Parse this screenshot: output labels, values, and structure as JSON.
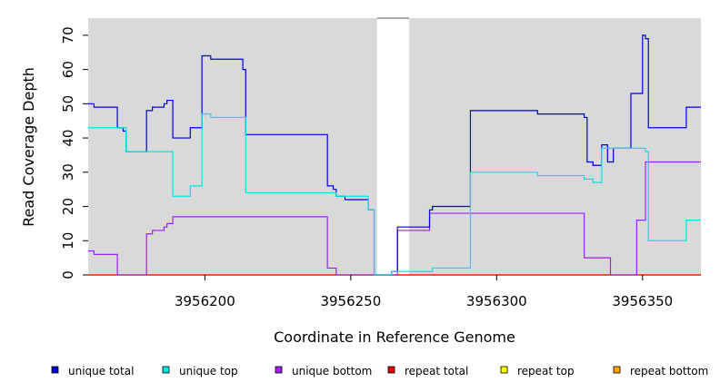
{
  "chart_data": {
    "type": "line",
    "xlabel": "Coordinate in Reference Genome",
    "ylabel": "Read Coverage Depth",
    "xlim": [
      3956160,
      3956370
    ],
    "ylim": [
      0,
      75
    ],
    "x_ticks": [
      3956200,
      3956250,
      3956300,
      3956350
    ],
    "y_ticks": [
      0,
      10,
      20,
      30,
      40,
      50,
      60,
      70
    ],
    "gap": [
      3956259,
      3956270
    ],
    "background": "#d9d9d9",
    "legend_position": "bottom",
    "series": [
      {
        "name": "unique total",
        "color": "#0000dd",
        "x": [
          3956160,
          3956162,
          3956170,
          3956172,
          3956173,
          3956180,
          3956182,
          3956186,
          3956187,
          3956189,
          3956195,
          3956199,
          3956202,
          3956204,
          3956213,
          3956214,
          3956242,
          3956244,
          3956245,
          3956248,
          3956256,
          3956258,
          3956264,
          3956266,
          3956270,
          3956277,
          3956278,
          3956291,
          3956314,
          3956330,
          3956331,
          3956333,
          3956334,
          3956336,
          3956338,
          3956340,
          3956346,
          3956350,
          3956351,
          3956352,
          3956365,
          3956370
        ],
        "y": [
          50,
          49,
          43,
          42,
          36,
          48,
          49,
          50,
          51,
          40,
          43,
          64,
          63,
          63,
          60,
          41,
          26,
          25,
          23,
          22,
          19,
          0,
          1,
          14,
          14,
          19,
          20,
          48,
          47,
          46,
          33,
          32,
          32,
          38,
          33,
          37,
          53,
          70,
          69,
          43,
          49,
          49
        ]
      },
      {
        "name": "unique top",
        "color": "#00e5e5",
        "x": [
          3956160,
          3956172,
          3956173,
          3956180,
          3956189,
          3956195,
          3956199,
          3956202,
          3956213,
          3956214,
          3956242,
          3956245,
          3956256,
          3956258,
          3956264,
          3956266,
          3956274,
          3956278,
          3956291,
          3956314,
          3956330,
          3956333,
          3956336,
          3956346,
          3956351,
          3956352,
          3956365,
          3956370
        ],
        "y": [
          43,
          43,
          36,
          36,
          23,
          26,
          47,
          46,
          46,
          24,
          24,
          23,
          19,
          0,
          1,
          1,
          1,
          2,
          30,
          29,
          28,
          27,
          37,
          37,
          36,
          10,
          16,
          16
        ],
        "draw_order": 2
      },
      {
        "name": "unique bottom",
        "color": "#a020f0",
        "x": [
          3956160,
          3956162,
          3956170,
          3956180,
          3956182,
          3956186,
          3956187,
          3956189,
          3956202,
          3956242,
          3956245,
          3956256,
          3956266,
          3956277,
          3956278,
          3956291,
          3956330,
          3956339,
          3956346,
          3956348,
          3956351,
          3956370
        ],
        "y": [
          7,
          6,
          0,
          12,
          13,
          14,
          15,
          17,
          17,
          2,
          0,
          0,
          13,
          18,
          18,
          18,
          5,
          0,
          0,
          16,
          33,
          33
        ]
      },
      {
        "name": "repeat total",
        "color": "#ee0000",
        "x": [
          3956160,
          3956370
        ],
        "y": [
          0,
          0
        ]
      },
      {
        "name": "repeat top",
        "color": "#ffff00",
        "x": [
          3956160,
          3956370
        ],
        "y": [
          0,
          0
        ]
      },
      {
        "name": "repeat bottom",
        "color": "#ffa500",
        "x": [
          3956160,
          3956370
        ],
        "y": [
          0,
          0
        ]
      }
    ]
  }
}
